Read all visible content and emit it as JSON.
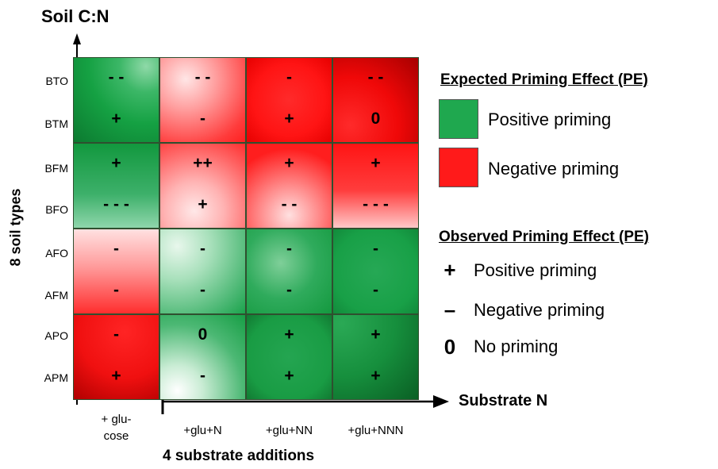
{
  "axis": {
    "y_title": "Soil C:N",
    "y_side_label": "8 soil types",
    "x_title": "Substrate N",
    "x_bottom_label": "4 substrate additions"
  },
  "rows": [
    "BTO",
    "BTM",
    "BFM",
    "BFO",
    "AFO",
    "AFM",
    "APO",
    "APM"
  ],
  "columns": [
    {
      "line1": "+ glu-",
      "line2": "cose"
    },
    {
      "line1": "+glu+N",
      "line2": ""
    },
    {
      "line1": "+glu+NN",
      "line2": ""
    },
    {
      "line1": "+glu+NNN",
      "line2": ""
    }
  ],
  "cells": [
    {
      "group": 0,
      "col": 0,
      "expected": "positive",
      "top": "- -",
      "bottom": "+"
    },
    {
      "group": 0,
      "col": 1,
      "expected": "negative",
      "top": "- -",
      "bottom": "-"
    },
    {
      "group": 0,
      "col": 2,
      "expected": "negative",
      "top": "-",
      "bottom": "+"
    },
    {
      "group": 0,
      "col": 3,
      "expected": "negative",
      "top": "- -",
      "bottom": "0"
    },
    {
      "group": 1,
      "col": 0,
      "expected": "positive",
      "top": "+",
      "bottom": "- - -"
    },
    {
      "group": 1,
      "col": 1,
      "expected": "negative",
      "top": "++",
      "bottom": "+"
    },
    {
      "group": 1,
      "col": 2,
      "expected": "negative",
      "top": "+",
      "bottom": "- -"
    },
    {
      "group": 1,
      "col": 3,
      "expected": "negative",
      "top": "+",
      "bottom": "- - -"
    },
    {
      "group": 2,
      "col": 0,
      "expected": "negative",
      "top": "-",
      "bottom": "-"
    },
    {
      "group": 2,
      "col": 1,
      "expected": "positive",
      "top": "-",
      "bottom": "-"
    },
    {
      "group": 2,
      "col": 2,
      "expected": "positive",
      "top": "-",
      "bottom": "-"
    },
    {
      "group": 2,
      "col": 3,
      "expected": "positive",
      "top": "-",
      "bottom": "-"
    },
    {
      "group": 3,
      "col": 0,
      "expected": "negative",
      "top": "-",
      "bottom": "+"
    },
    {
      "group": 3,
      "col": 1,
      "expected": "positive",
      "top": "0",
      "bottom": "-"
    },
    {
      "group": 3,
      "col": 2,
      "expected": "positive",
      "top": "+",
      "bottom": "+"
    },
    {
      "group": 3,
      "col": 3,
      "expected": "positive",
      "top": "+",
      "bottom": "+"
    }
  ],
  "legend": {
    "expected_title": "Expected Priming Effect (PE)",
    "expected_positive": "Positive priming",
    "expected_negative": "Negative priming",
    "observed_title": "Observed Priming Effect (PE)",
    "observed_items": [
      {
        "symbol": "+",
        "label": "Positive priming"
      },
      {
        "symbol": "–",
        "label": "Negative priming"
      },
      {
        "symbol": "0",
        "label": "No priming"
      }
    ]
  },
  "colors": {
    "green": "#1fa84f",
    "red": "#ff1a1a"
  }
}
